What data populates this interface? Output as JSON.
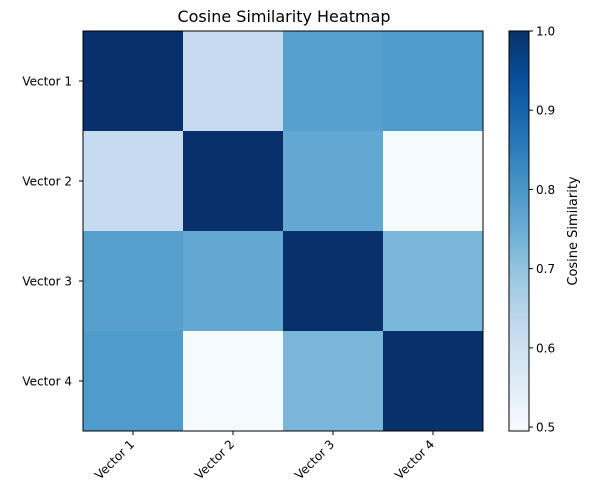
{
  "chart_data": {
    "type": "heatmap",
    "title": "Cosine Similarity Heatmap",
    "x_categories": [
      "Vector 1",
      "Vector 2",
      "Vector 3",
      "Vector 4"
    ],
    "y_categories": [
      "Vector 1",
      "Vector 2",
      "Vector 3",
      "Vector 4"
    ],
    "values": [
      [
        1.0,
        0.62,
        0.78,
        0.79
      ],
      [
        0.62,
        1.0,
        0.76,
        0.5
      ],
      [
        0.78,
        0.76,
        1.0,
        0.73
      ],
      [
        0.79,
        0.5,
        0.73,
        1.0
      ]
    ],
    "colorbar": {
      "label": "Cosine Similarity",
      "range": [
        0.495,
        1.0
      ],
      "ticks": [
        "0.5",
        "0.6",
        "0.7",
        "0.8",
        "0.9",
        "1.0"
      ],
      "colormap": "Blues"
    },
    "xtick_rotation_deg": 45,
    "grid": false
  }
}
